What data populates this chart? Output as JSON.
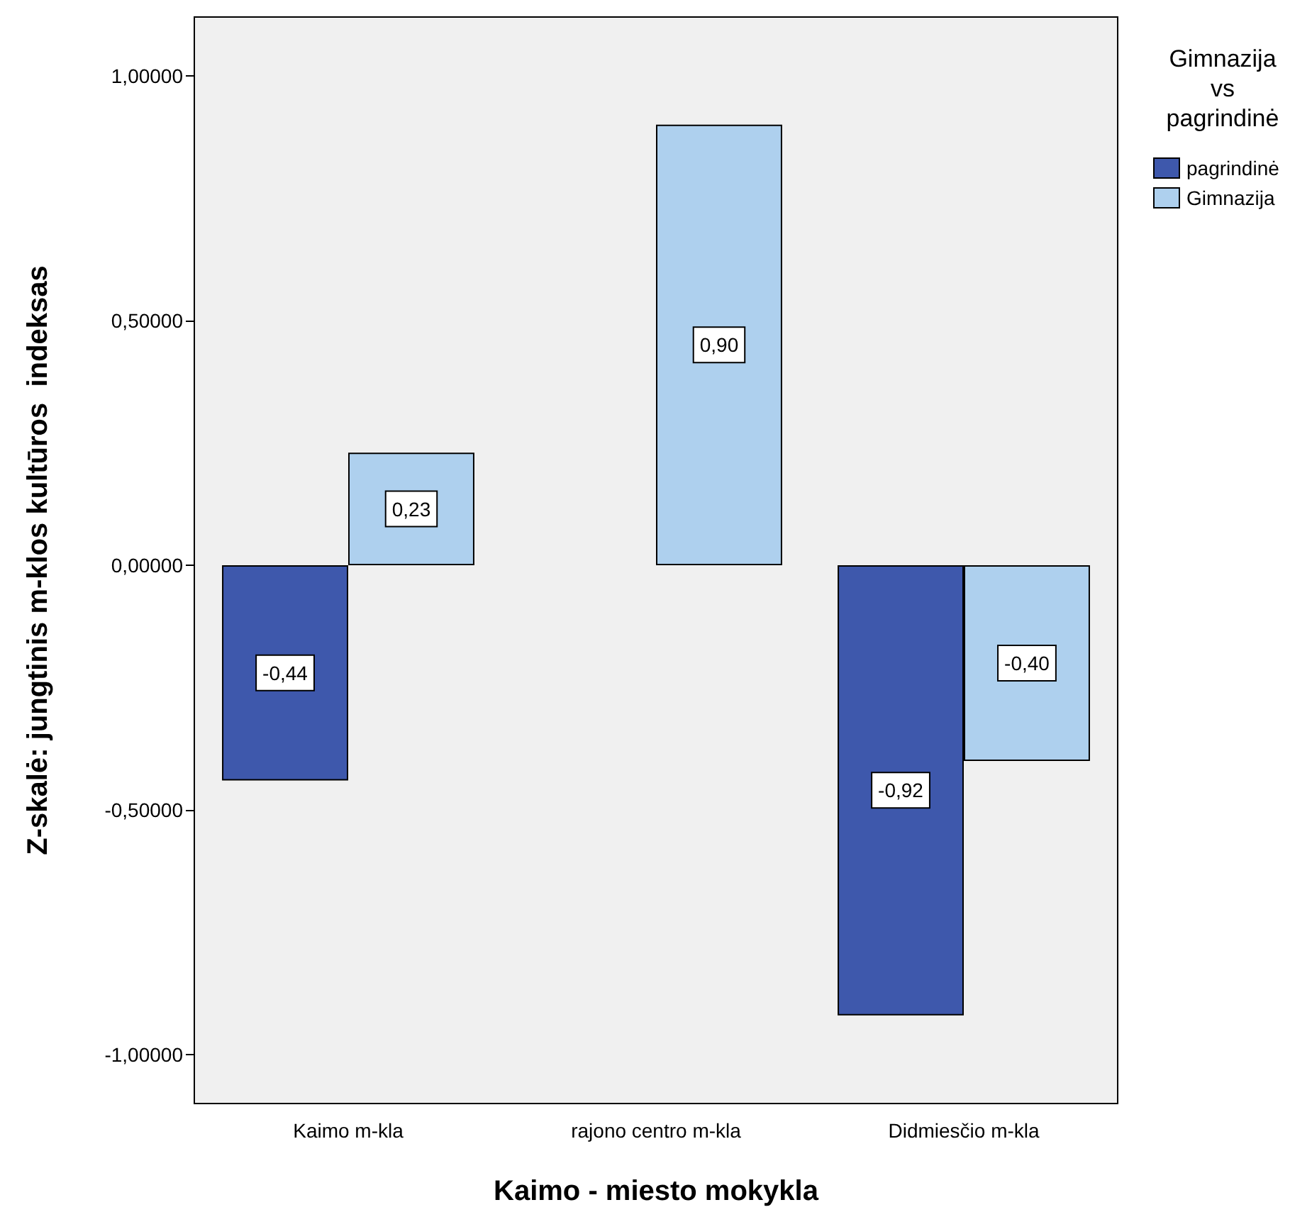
{
  "chart_data": {
    "type": "bar",
    "xlabel": "Kaimo - miesto mokykla",
    "ylabel": "Z-skalė: jungtinis m-klos kultūros  indeksas",
    "legend_title": "Gimnazija\nvs\npagrindinė",
    "categories": [
      "Kaimo m-kla",
      "rajono centro m-kla",
      "Didmiesčio m-kla"
    ],
    "series": [
      {
        "name": "pagrindinė",
        "color": "#3e58ac",
        "values": [
          -0.44,
          null,
          -0.92
        ],
        "value_labels": [
          "-0,44",
          null,
          "-0,92"
        ]
      },
      {
        "name": "Gimnazija",
        "color": "#aed0ee",
        "values": [
          0.23,
          0.9,
          -0.4
        ],
        "value_labels": [
          "0,23",
          "0,90",
          "-0,40"
        ]
      }
    ],
    "ylim": [
      -1.1,
      1.12
    ],
    "yticks": [
      {
        "value": -1,
        "label": "-1,00000"
      },
      {
        "value": -0.5,
        "label": "-0,50000"
      },
      {
        "value": 0,
        "label": "0,00000"
      },
      {
        "value": 0.5,
        "label": "0,50000"
      },
      {
        "value": 1,
        "label": "1,00000"
      }
    ],
    "grid": false,
    "legend": "right"
  }
}
